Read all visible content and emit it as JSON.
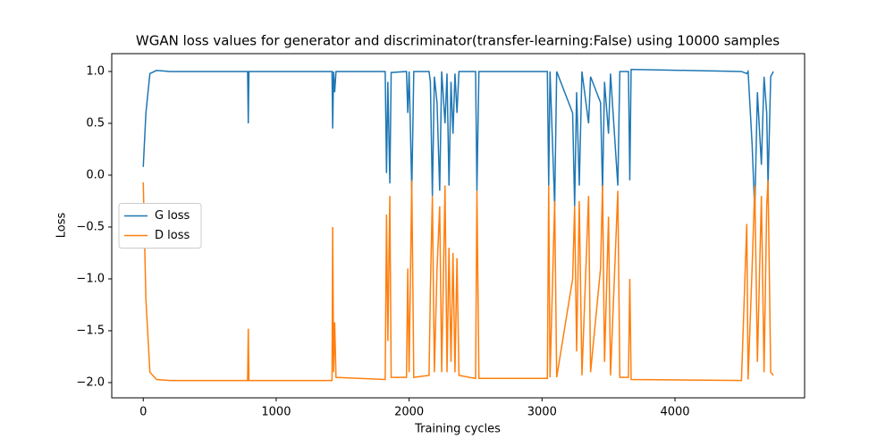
{
  "chart_data": {
    "type": "line",
    "title": "WGAN loss values for generator and discriminator(transfer-learning:False) using 10000 samples",
    "xlabel": "Training cycles",
    "ylabel": "Loss",
    "x": [
      0,
      20,
      50,
      100,
      200,
      785,
      790,
      795,
      1420,
      1425,
      1432,
      1440,
      1450,
      1820,
      1830,
      1840,
      1855,
      1865,
      1980,
      1990,
      2000,
      2020,
      2035,
      2150,
      2160,
      2175,
      2190,
      2210,
      2230,
      2245,
      2270,
      2285,
      2300,
      2315,
      2330,
      2345,
      2360,
      2375,
      2500,
      2510,
      2525,
      3040,
      3050,
      3060,
      3095,
      3110,
      3230,
      3245,
      3260,
      3280,
      3300,
      3350,
      3365,
      3440,
      3455,
      3470,
      3500,
      3515,
      3570,
      3585,
      3650,
      3660,
      3670,
      4500,
      4540,
      4550,
      4580,
      4600,
      4620,
      4650,
      4670,
      4690,
      4700,
      4720,
      4740
    ],
    "series": [
      {
        "name": "G loss",
        "color": "#1f77b4",
        "values": [
          0.08,
          0.6,
          0.98,
          1.01,
          1.0,
          1.0,
          0.5,
          1.0,
          1.0,
          0.45,
          1.0,
          0.8,
          1.0,
          1.0,
          0.02,
          0.9,
          -0.08,
          0.99,
          1.0,
          0.6,
          1.0,
          -0.15,
          1.0,
          1.0,
          0.9,
          -0.2,
          0.95,
          0.7,
          -0.15,
          1.0,
          0.5,
          0.98,
          -0.1,
          0.9,
          0.4,
          0.98,
          0.6,
          1.0,
          1.0,
          -0.15,
          1.0,
          1.0,
          -0.1,
          1.0,
          -0.3,
          1.0,
          0.6,
          -0.3,
          0.8,
          -0.1,
          1.0,
          0.5,
          0.95,
          0.7,
          -0.15,
          0.9,
          0.4,
          0.98,
          -0.1,
          1.0,
          1.0,
          -0.05,
          1.02,
          1.0,
          0.98,
          1.0,
          0.3,
          -0.35,
          0.8,
          0.1,
          0.95,
          0.6,
          -0.1,
          0.95,
          1.0
        ]
      },
      {
        "name": "D loss",
        "color": "#ff7f0e",
        "values": [
          -0.07,
          -1.2,
          -1.9,
          -1.97,
          -1.98,
          -1.98,
          -1.48,
          -1.98,
          -1.98,
          -0.5,
          -1.9,
          -1.42,
          -1.95,
          -1.97,
          -0.38,
          -1.6,
          -0.2,
          -1.95,
          -1.95,
          -0.9,
          -1.9,
          -0.05,
          -1.95,
          -1.93,
          -1.1,
          -0.2,
          -1.9,
          -0.9,
          -0.3,
          -1.9,
          -0.1,
          -1.9,
          -0.7,
          -1.8,
          -0.75,
          -1.9,
          -0.8,
          -1.93,
          -1.96,
          -0.15,
          -1.96,
          -1.96,
          -0.1,
          -1.95,
          -0.25,
          -1.95,
          -1.0,
          -0.3,
          -1.7,
          -0.25,
          -1.93,
          -0.2,
          -1.9,
          -0.9,
          -0.1,
          -1.8,
          -0.4,
          -1.93,
          -0.15,
          -1.95,
          -1.95,
          -1.0,
          -1.97,
          -1.98,
          -0.47,
          -1.97,
          -0.9,
          -0.1,
          -1.8,
          -0.2,
          -1.9,
          -0.3,
          -0.05,
          -1.9,
          -1.93
        ]
      }
    ],
    "xlim": [
      -237,
      4975
    ],
    "xticks": [
      0,
      1000,
      2000,
      3000,
      4000
    ],
    "ylim": [
      -2.147,
      1.172
    ],
    "yticks": [
      {
        "value": -2.0,
        "label": "−2.0"
      },
      {
        "value": -1.5,
        "label": "−1.5"
      },
      {
        "value": -1.0,
        "label": "−1.0"
      },
      {
        "value": -0.5,
        "label": "−0.5"
      },
      {
        "value": 0.0,
        "label": "0.0"
      },
      {
        "value": 0.5,
        "label": "0.5"
      },
      {
        "value": 1.0,
        "label": "1.0"
      }
    ],
    "legend": "center left"
  }
}
